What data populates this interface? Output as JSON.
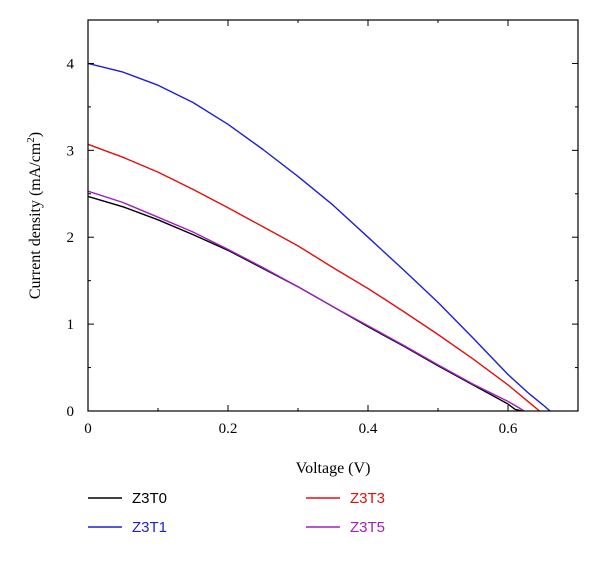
{
  "chart_data": {
    "type": "line",
    "xlabel": "Voltage (V)",
    "ylabel_main": "Current density (mA/cm",
    "ylabel_sup": "2",
    "ylabel_close": ")",
    "xlim": [
      0,
      0.7
    ],
    "ylim": [
      0,
      4.5
    ],
    "xticks": [
      0,
      0.2,
      0.4,
      0.6
    ],
    "xtick_labels": [
      "0",
      "0.2",
      "0.4",
      "0.6"
    ],
    "yticks": [
      0,
      1,
      2,
      3,
      4
    ],
    "ytick_labels": [
      "0",
      "1",
      "2",
      "3",
      "4"
    ],
    "grid": false,
    "legend_position": "below",
    "series": [
      {
        "name": "Z3T0",
        "color": "#000000",
        "x": [
          0.0,
          0.05,
          0.1,
          0.15,
          0.2,
          0.25,
          0.3,
          0.35,
          0.4,
          0.45,
          0.5,
          0.55,
          0.6,
          0.61,
          0.62
        ],
        "y": [
          2.47,
          2.35,
          2.2,
          2.03,
          1.85,
          1.64,
          1.43,
          1.2,
          0.97,
          0.75,
          0.52,
          0.3,
          0.08,
          0.02,
          0.0
        ]
      },
      {
        "name": "Z3T1",
        "color": "#1f1fd0",
        "x": [
          0.0,
          0.05,
          0.1,
          0.15,
          0.2,
          0.25,
          0.3,
          0.35,
          0.4,
          0.45,
          0.5,
          0.55,
          0.6,
          0.63,
          0.65,
          0.66
        ],
        "y": [
          4.0,
          3.9,
          3.75,
          3.55,
          3.3,
          3.01,
          2.7,
          2.37,
          2.0,
          1.63,
          1.25,
          0.84,
          0.42,
          0.2,
          0.07,
          0.0
        ]
      },
      {
        "name": "Z3T3",
        "color": "#e01010",
        "x": [
          0.0,
          0.05,
          0.1,
          0.15,
          0.2,
          0.25,
          0.3,
          0.35,
          0.4,
          0.45,
          0.5,
          0.55,
          0.6,
          0.63,
          0.645
        ],
        "y": [
          3.07,
          2.92,
          2.75,
          2.55,
          2.34,
          2.12,
          1.9,
          1.65,
          1.41,
          1.15,
          0.88,
          0.6,
          0.3,
          0.1,
          0.0
        ]
      },
      {
        "name": "Z3T5",
        "color": "#a020c0",
        "x": [
          0.0,
          0.05,
          0.1,
          0.15,
          0.2,
          0.25,
          0.3,
          0.35,
          0.4,
          0.45,
          0.5,
          0.55,
          0.6,
          0.615,
          0.623
        ],
        "y": [
          2.53,
          2.4,
          2.23,
          2.06,
          1.86,
          1.65,
          1.43,
          1.2,
          0.98,
          0.76,
          0.53,
          0.31,
          0.11,
          0.04,
          0.0
        ]
      }
    ]
  }
}
